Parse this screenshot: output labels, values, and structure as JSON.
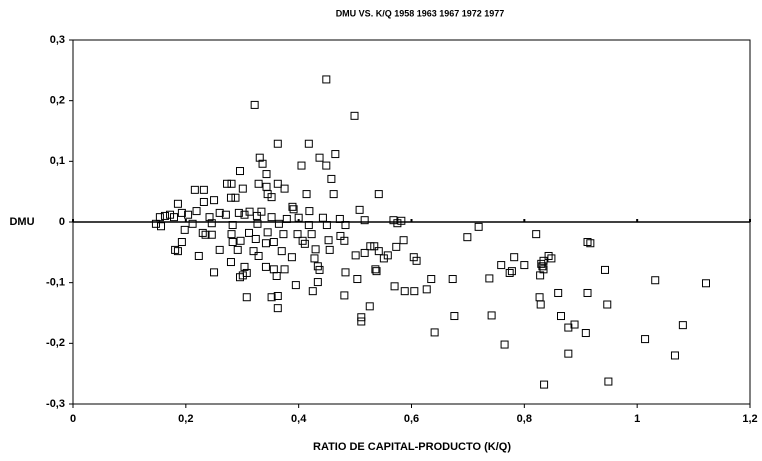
{
  "chart_data": {
    "type": "scatter",
    "title": "DMU VS. K/Q   1958 1963 1967 1972 1977",
    "x_label": "RATIO DE CAPITAL-PRODUCTO (K/Q)",
    "y_label": "DMU",
    "color": "#000000",
    "xlim": [
      0,
      1.2
    ],
    "ylim": [
      -0.3,
      0.3
    ],
    "xticks": [
      0,
      {
        "value": 0.2,
        "label": "0,2"
      },
      {
        "value": 0.4,
        "label": "0,4"
      },
      {
        "value": 0.6,
        "label": "0,6"
      },
      {
        "value": 0.8,
        "label": "0,8"
      },
      1,
      {
        "value": 1.2,
        "label": "1,2"
      }
    ],
    "yticks": [
      {
        "value": -0.3,
        "label": "-0,3"
      },
      {
        "value": -0.2,
        "label": "-0,2"
      },
      {
        "value": -0.1,
        "label": "-0,1"
      },
      0,
      {
        "value": 0.1,
        "label": "0,1"
      },
      {
        "value": 0.2,
        "label": "0,2"
      },
      {
        "value": 0.3,
        "label": "0,3"
      }
    ],
    "zero_line": true,
    "x": [
      0.449,
      0.322,
      0.499,
      0.418,
      0.363,
      0.465,
      0.437,
      0.331,
      0.336,
      0.405,
      0.449,
      0.343,
      0.296,
      0.458,
      0.363,
      0.329,
      0.273,
      0.281,
      0.216,
      0.232,
      0.343,
      0.375,
      0.301,
      0.542,
      0.462,
      0.414,
      0.345,
      0.352,
      0.28,
      0.288,
      0.25,
      0.186,
      0.232,
      0.391,
      0.508,
      0.334,
      0.389,
      0.419,
      0.313,
      0.26,
      0.219,
      0.193,
      0.172,
      0.163,
      0.154,
      0.179,
      0.204,
      0.242,
      0.271,
      0.294,
      0.304,
      0.326,
      0.352,
      0.379,
      0.4,
      0.443,
      0.473,
      0.517,
      0.568,
      0.582,
      0.575,
      0.147,
      0.156,
      0.212,
      0.246,
      0.283,
      0.327,
      0.365,
      0.418,
      0.45,
      0.483,
      0.198,
      0.23,
      0.235,
      0.246,
      0.281,
      0.312,
      0.345,
      0.373,
      0.398,
      0.423,
      0.474,
      0.324,
      0.407,
      0.411,
      0.453,
      0.481,
      0.586,
      0.283,
      0.297,
      0.342,
      0.356,
      0.193,
      0.699,
      0.719,
      0.821,
      0.527,
      0.534,
      0.573,
      0.181,
      0.186,
      0.26,
      0.292,
      0.32,
      0.37,
      0.43,
      0.455,
      0.517,
      0.542,
      0.223,
      0.329,
      0.388,
      0.428,
      0.501,
      0.551,
      0.558,
      0.604,
      0.609,
      0.848,
      0.843,
      0.834,
      0.8,
      0.832,
      0.83,
      0.834,
      0.828,
      0.28,
      0.304,
      0.342,
      0.356,
      0.375,
      0.434,
      0.437,
      0.483,
      0.538,
      0.536,
      0.738,
      0.635,
      0.673,
      0.943,
      0.296,
      0.301,
      0.25,
      0.308,
      0.361,
      0.504,
      0.434,
      0.395,
      0.57,
      0.588,
      0.605,
      0.627,
      0.425,
      0.481,
      0.352,
      0.363,
      0.308,
      0.827,
      0.86,
      0.912,
      0.829,
      0.947,
      1.032,
      1.122,
      0.363,
      0.526,
      0.511,
      0.511,
      0.742,
      0.676,
      0.865,
      0.889,
      0.878,
      0.909,
      1.081,
      0.641,
      0.765,
      1.014,
      0.878,
      1.067,
      0.949,
      0.835,
      0.912,
      0.917,
      0.782,
      0.759,
      0.774,
      0.778
    ],
    "values": [
      0.235,
      0.193,
      0.175,
      0.129,
      0.129,
      0.112,
      0.106,
      0.106,
      0.096,
      0.093,
      0.093,
      0.079,
      0.084,
      0.071,
      0.063,
      0.063,
      0.063,
      0.063,
      0.053,
      0.053,
      0.058,
      0.055,
      0.055,
      0.046,
      0.046,
      0.046,
      0.046,
      0.041,
      0.04,
      0.04,
      0.036,
      0.03,
      0.033,
      0.021,
      0.02,
      0.017,
      0.025,
      0.018,
      0.017,
      0.015,
      0.018,
      0.015,
      0.012,
      0.01,
      0.008,
      0.008,
      0.012,
      0.008,
      0.012,
      0.015,
      0.012,
      0.01,
      0.008,
      0.005,
      0.007,
      0.007,
      0.005,
      0.003,
      0.003,
      0.002,
      -0.002,
      -0.003,
      -0.007,
      -0.003,
      -0.002,
      -0.005,
      -0.003,
      -0.003,
      -0.005,
      -0.005,
      -0.005,
      -0.013,
      -0.018,
      -0.021,
      -0.021,
      -0.02,
      -0.018,
      -0.017,
      -0.02,
      -0.02,
      -0.02,
      -0.023,
      -0.028,
      -0.031,
      -0.036,
      -0.03,
      -0.031,
      -0.03,
      -0.033,
      -0.031,
      -0.035,
      -0.033,
      -0.033,
      -0.025,
      -0.008,
      -0.02,
      -0.04,
      -0.04,
      -0.041,
      -0.046,
      -0.048,
      -0.046,
      -0.046,
      -0.048,
      -0.048,
      -0.045,
      -0.046,
      -0.051,
      -0.048,
      -0.056,
      -0.056,
      -0.058,
      -0.06,
      -0.055,
      -0.06,
      -0.055,
      -0.058,
      -0.064,
      -0.06,
      -0.056,
      -0.064,
      -0.071,
      -0.073,
      -0.069,
      -0.078,
      -0.088,
      -0.066,
      -0.074,
      -0.074,
      -0.078,
      -0.078,
      -0.073,
      -0.079,
      -0.083,
      -0.081,
      -0.078,
      -0.093,
      -0.094,
      -0.094,
      -0.079,
      -0.091,
      -0.088,
      -0.083,
      -0.084,
      -0.089,
      -0.094,
      -0.099,
      -0.104,
      -0.106,
      -0.114,
      -0.114,
      -0.111,
      -0.114,
      -0.121,
      -0.124,
      -0.122,
      -0.124,
      -0.124,
      -0.117,
      -0.117,
      -0.136,
      -0.136,
      -0.096,
      -0.101,
      -0.142,
      -0.139,
      -0.157,
      -0.164,
      -0.154,
      -0.155,
      -0.155,
      -0.169,
      -0.174,
      -0.183,
      -0.17,
      -0.182,
      -0.202,
      -0.193,
      -0.217,
      -0.22,
      -0.263,
      -0.268,
      -0.033,
      -0.035,
      -0.058,
      -0.071,
      -0.084,
      -0.081
    ]
  }
}
